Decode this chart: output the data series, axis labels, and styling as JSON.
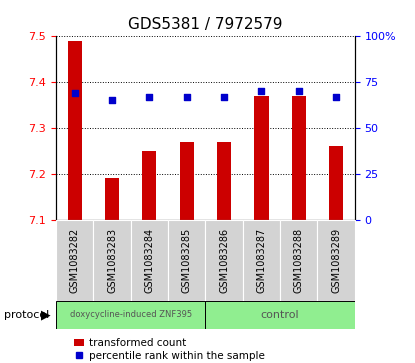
{
  "title": "GDS5381 / 7972579",
  "samples": [
    "GSM1083282",
    "GSM1083283",
    "GSM1083284",
    "GSM1083285",
    "GSM1083286",
    "GSM1083287",
    "GSM1083288",
    "GSM1083289"
  ],
  "transformed_count": [
    7.49,
    7.19,
    7.25,
    7.27,
    7.27,
    7.37,
    7.37,
    7.26
  ],
  "percentile_rank": [
    69,
    65,
    67,
    67,
    67,
    70,
    70,
    67
  ],
  "ylim_left": [
    7.1,
    7.5
  ],
  "ylim_right": [
    0,
    100
  ],
  "yticks_left": [
    7.1,
    7.2,
    7.3,
    7.4,
    7.5
  ],
  "yticks_right": [
    0,
    25,
    50,
    75,
    100
  ],
  "bar_color": "#cc0000",
  "dot_color": "#0000cc",
  "bar_bottom": 7.1,
  "group1_label": "doxycycline-induced ZNF395",
  "group2_label": "control",
  "group1_count": 4,
  "group2_count": 4,
  "protocol_label": "protocol",
  "legend_bar_label": "transformed count",
  "legend_dot_label": "percentile rank within the sample",
  "group1_color": "#90ee90",
  "group2_color": "#90ee90",
  "sample_bg_color": "#d3d3d3",
  "title_fontsize": 11,
  "tick_fontsize": 8,
  "label_fontsize": 7
}
